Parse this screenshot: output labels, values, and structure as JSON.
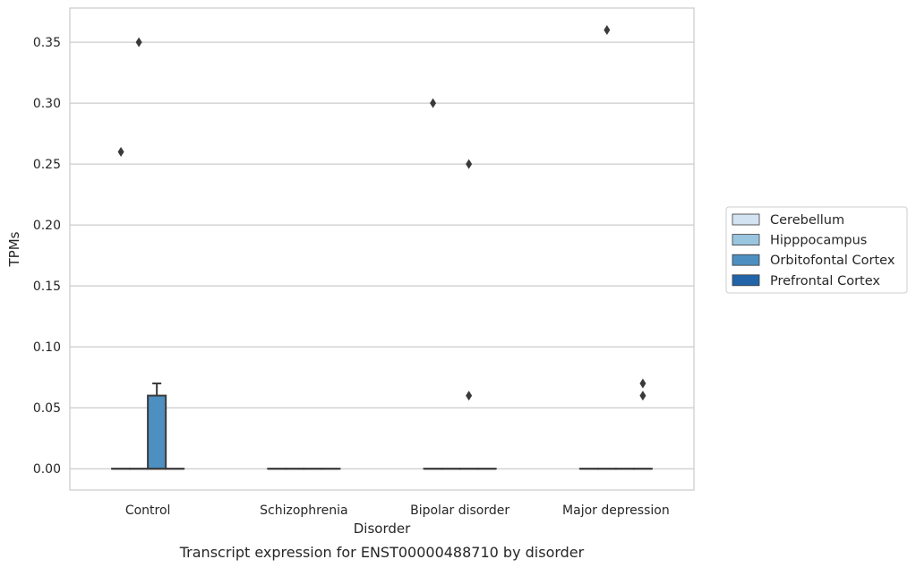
{
  "caption": "Transcript expression for ENST00000488710 by disorder",
  "colors": {
    "Cerebellum": "#d3e3f1",
    "Hipppocampus": "#9ac5df",
    "Orbitofontal Cortex": "#4d8fc0",
    "Prefrontal Cortex": "#2264a8",
    "grid": "#cccccc",
    "box_edge": "#3a3a3a"
  },
  "chart_data": {
    "type": "boxplot",
    "xlabel": "Disorder",
    "ylabel": "TPMs",
    "categories": [
      "Control",
      "Schizophrenia",
      "Bipolar disorder",
      "Major depression"
    ],
    "ylim": [
      -0.0175,
      0.378
    ],
    "yticks": [
      0.0,
      0.05,
      0.1,
      0.15,
      0.2,
      0.25,
      0.3,
      0.35
    ],
    "ytick_labels": [
      "0.00",
      "0.05",
      "0.10",
      "0.15",
      "0.20",
      "0.25",
      "0.30",
      "0.35"
    ],
    "grid": "horizontal",
    "legend_position": "right",
    "series": [
      {
        "name": "Cerebellum",
        "boxes": [
          {
            "q1": 0,
            "median": 0,
            "q3": 0,
            "whisker_low": 0,
            "whisker_high": 0,
            "outliers": [
              0.26
            ]
          },
          {
            "q1": 0,
            "median": 0,
            "q3": 0,
            "whisker_low": 0,
            "whisker_high": 0,
            "outliers": []
          },
          {
            "q1": 0,
            "median": 0,
            "q3": 0,
            "whisker_low": 0,
            "whisker_high": 0,
            "outliers": [
              0.3
            ]
          },
          {
            "q1": 0,
            "median": 0,
            "q3": 0,
            "whisker_low": 0,
            "whisker_high": 0,
            "outliers": []
          }
        ]
      },
      {
        "name": "Hipppocampus",
        "boxes": [
          {
            "q1": 0,
            "median": 0,
            "q3": 0,
            "whisker_low": 0,
            "whisker_high": 0,
            "outliers": [
              0.35
            ]
          },
          {
            "q1": 0,
            "median": 0,
            "q3": 0,
            "whisker_low": 0,
            "whisker_high": 0,
            "outliers": []
          },
          {
            "q1": 0,
            "median": 0,
            "q3": 0,
            "whisker_low": 0,
            "whisker_high": 0,
            "outliers": []
          },
          {
            "q1": 0,
            "median": 0,
            "q3": 0,
            "whisker_low": 0,
            "whisker_high": 0,
            "outliers": [
              0.36
            ]
          }
        ]
      },
      {
        "name": "Orbitofontal Cortex",
        "boxes": [
          {
            "q1": 0,
            "median": 0,
            "q3": 0.06,
            "whisker_low": 0,
            "whisker_high": 0.07,
            "outliers": []
          },
          {
            "q1": 0,
            "median": 0,
            "q3": 0,
            "whisker_low": 0,
            "whisker_high": 0,
            "outliers": []
          },
          {
            "q1": 0,
            "median": 0,
            "q3": 0,
            "whisker_low": 0,
            "whisker_high": 0,
            "outliers": [
              0.06,
              0.25
            ]
          },
          {
            "q1": 0,
            "median": 0,
            "q3": 0,
            "whisker_low": 0,
            "whisker_high": 0,
            "outliers": []
          }
        ]
      },
      {
        "name": "Prefrontal Cortex",
        "boxes": [
          {
            "q1": 0,
            "median": 0,
            "q3": 0,
            "whisker_low": 0,
            "whisker_high": 0,
            "outliers": []
          },
          {
            "q1": 0,
            "median": 0,
            "q3": 0,
            "whisker_low": 0,
            "whisker_high": 0,
            "outliers": []
          },
          {
            "q1": 0,
            "median": 0,
            "q3": 0,
            "whisker_low": 0,
            "whisker_high": 0,
            "outliers": []
          },
          {
            "q1": 0,
            "median": 0,
            "q3": 0,
            "whisker_low": 0,
            "whisker_high": 0,
            "outliers": [
              0.06,
              0.07
            ]
          }
        ]
      }
    ]
  }
}
